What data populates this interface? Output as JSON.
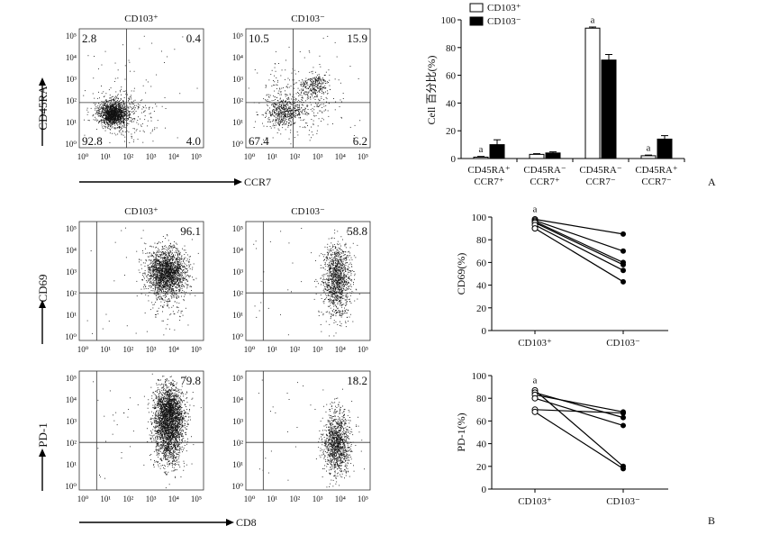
{
  "panel_labels": {
    "a": "A",
    "b": "B"
  },
  "flow_axes": {
    "ticks": [
      "10⁰",
      "10¹",
      "10²",
      "10³",
      "10⁴",
      "10⁵"
    ],
    "y_label_a": "CD45RA",
    "x_label_a": "CCR7",
    "y_label_cd69": "CD69",
    "y_label_pd1": "PD-1",
    "x_label_b": "CD8"
  },
  "flow_plots": [
    {
      "id": "a-pos",
      "title": "CD103⁺",
      "quadrants": {
        "ul": "2.8",
        "ur": "0.4",
        "ll": "92.8",
        "lr": "4.0"
      }
    },
    {
      "id": "a-neg",
      "title": "CD103⁻",
      "quadrants": {
        "ul": "10.5",
        "ur": "15.9",
        "ll": "67.4",
        "lr": "6.2"
      }
    },
    {
      "id": "cd69-pos",
      "title": "CD103⁺",
      "quadrants": {
        "ur": "96.1"
      }
    },
    {
      "id": "cd69-neg",
      "title": "CD103⁻",
      "quadrants": {
        "ur": "58.8"
      }
    },
    {
      "id": "pd1-pos",
      "title": "",
      "quadrants": {
        "ur": "79.8"
      }
    },
    {
      "id": "pd1-neg",
      "title": "",
      "quadrants": {
        "ur": "18.2"
      }
    }
  ],
  "chart_data": [
    {
      "type": "bar",
      "ylabel": "Cell 百分比(%)",
      "ylim": [
        0,
        100
      ],
      "yticks": [
        "0",
        "20",
        "40",
        "60",
        "80",
        "100"
      ],
      "categories": [
        [
          "CD45RA⁺",
          "CCR7⁺"
        ],
        [
          "CD45RA⁻",
          "CCR7⁺"
        ],
        [
          "CD45RA⁻",
          "CCR7⁻"
        ],
        [
          "CD45RA⁺",
          "CCR7⁻"
        ]
      ],
      "series": [
        {
          "name": "CD103⁺",
          "color": "#ffffff",
          "values": [
            1,
            3,
            94,
            2
          ],
          "errors": [
            0.5,
            0.5,
            0.8,
            0.5
          ]
        },
        {
          "name": "CD103⁻",
          "color": "#000000",
          "values": [
            10,
            4,
            71,
            14
          ],
          "errors": [
            3.5,
            0.8,
            4,
            2.5
          ]
        }
      ],
      "annotations": [
        "a",
        "a",
        "a"
      ],
      "legend": "top-left"
    },
    {
      "type": "line",
      "ylabel": "CD69(%)",
      "ylim": [
        0,
        100
      ],
      "yticks": [
        "0",
        "20",
        "40",
        "60",
        "80",
        "100"
      ],
      "categories": [
        "CD103⁺",
        "CD103⁻"
      ],
      "paired_values": [
        [
          98,
          85
        ],
        [
          97,
          70
        ],
        [
          96,
          60
        ],
        [
          95,
          58
        ],
        [
          93,
          53
        ],
        [
          90,
          43
        ]
      ],
      "annotation": "a"
    },
    {
      "type": "line",
      "ylabel": "PD-1(%)",
      "ylim": [
        0,
        100
      ],
      "yticks": [
        "0",
        "20",
        "40",
        "60",
        "80",
        "100"
      ],
      "categories": [
        "CD103⁺",
        "CD103⁻"
      ],
      "paired_values": [
        [
          87,
          20
        ],
        [
          85,
          63
        ],
        [
          83,
          68
        ],
        [
          80,
          56
        ],
        [
          70,
          67
        ],
        [
          68,
          18
        ]
      ],
      "annotation": "a"
    }
  ]
}
